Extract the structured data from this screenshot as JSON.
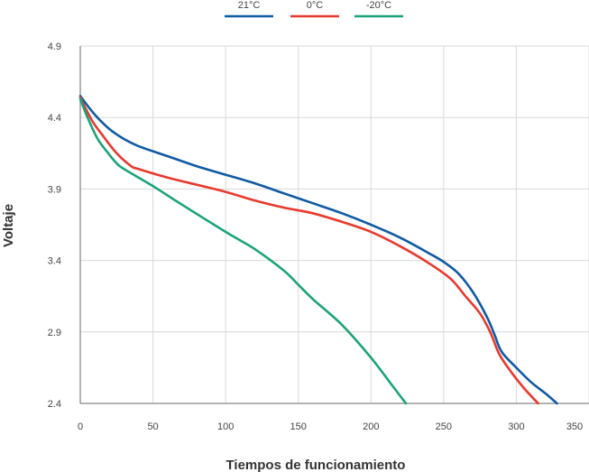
{
  "chart_data": {
    "type": "line",
    "xlabel": "Tiempos de funcionamiento",
    "ylabel": "Voltaje",
    "xlim": [
      0,
      350
    ],
    "ylim": [
      2.4,
      4.9
    ],
    "x_ticks": [
      "0",
      "50",
      "100",
      "150",
      "200",
      "250",
      "300",
      "350"
    ],
    "x_tick_values": [
      0,
      50,
      100,
      150,
      200,
      250,
      300,
      350
    ],
    "y_ticks": [
      "2.4",
      "2.9",
      "3.4",
      "3.9",
      "4.4",
      "4.9"
    ],
    "y_tick_values": [
      2.4,
      2.9,
      3.4,
      3.9,
      4.4,
      4.9
    ],
    "grid": true,
    "legend_position": "top-center",
    "series": [
      {
        "name": "21°C",
        "color": "#0f5aa3",
        "points": [
          [
            0,
            4.55
          ],
          [
            10,
            4.42
          ],
          [
            20,
            4.32
          ],
          [
            30,
            4.25
          ],
          [
            40,
            4.2
          ],
          [
            60,
            4.13
          ],
          [
            80,
            4.06
          ],
          [
            100,
            4.0
          ],
          [
            120,
            3.94
          ],
          [
            140,
            3.87
          ],
          [
            160,
            3.8
          ],
          [
            180,
            3.73
          ],
          [
            200,
            3.65
          ],
          [
            220,
            3.56
          ],
          [
            240,
            3.45
          ],
          [
            250,
            3.39
          ],
          [
            260,
            3.31
          ],
          [
            270,
            3.18
          ],
          [
            280,
            3.0
          ],
          [
            285,
            2.88
          ],
          [
            290,
            2.76
          ],
          [
            300,
            2.65
          ],
          [
            310,
            2.55
          ],
          [
            320,
            2.47
          ],
          [
            328,
            2.4
          ]
        ]
      },
      {
        "name": "0°C",
        "color": "#e8392e",
        "points": [
          [
            0,
            4.54
          ],
          [
            8,
            4.38
          ],
          [
            15,
            4.28
          ],
          [
            25,
            4.15
          ],
          [
            35,
            4.06
          ],
          [
            40,
            4.04
          ],
          [
            60,
            3.98
          ],
          [
            80,
            3.93
          ],
          [
            100,
            3.88
          ],
          [
            120,
            3.82
          ],
          [
            140,
            3.77
          ],
          [
            160,
            3.73
          ],
          [
            180,
            3.67
          ],
          [
            200,
            3.6
          ],
          [
            220,
            3.5
          ],
          [
            240,
            3.38
          ],
          [
            255,
            3.27
          ],
          [
            265,
            3.15
          ],
          [
            275,
            3.03
          ],
          [
            282,
            2.9
          ],
          [
            288,
            2.75
          ],
          [
            295,
            2.64
          ],
          [
            305,
            2.51
          ],
          [
            315,
            2.4
          ]
        ]
      },
      {
        "name": "-20°C",
        "color": "#1aa37a",
        "points": [
          [
            0,
            4.53
          ],
          [
            5,
            4.4
          ],
          [
            12,
            4.25
          ],
          [
            20,
            4.14
          ],
          [
            25,
            4.08
          ],
          [
            30,
            4.04
          ],
          [
            50,
            3.92
          ],
          [
            70,
            3.79
          ],
          [
            100,
            3.6
          ],
          [
            120,
            3.48
          ],
          [
            140,
            3.33
          ],
          [
            150,
            3.23
          ],
          [
            160,
            3.13
          ],
          [
            180,
            2.95
          ],
          [
            200,
            2.72
          ],
          [
            215,
            2.52
          ],
          [
            224,
            2.4
          ]
        ]
      }
    ]
  }
}
